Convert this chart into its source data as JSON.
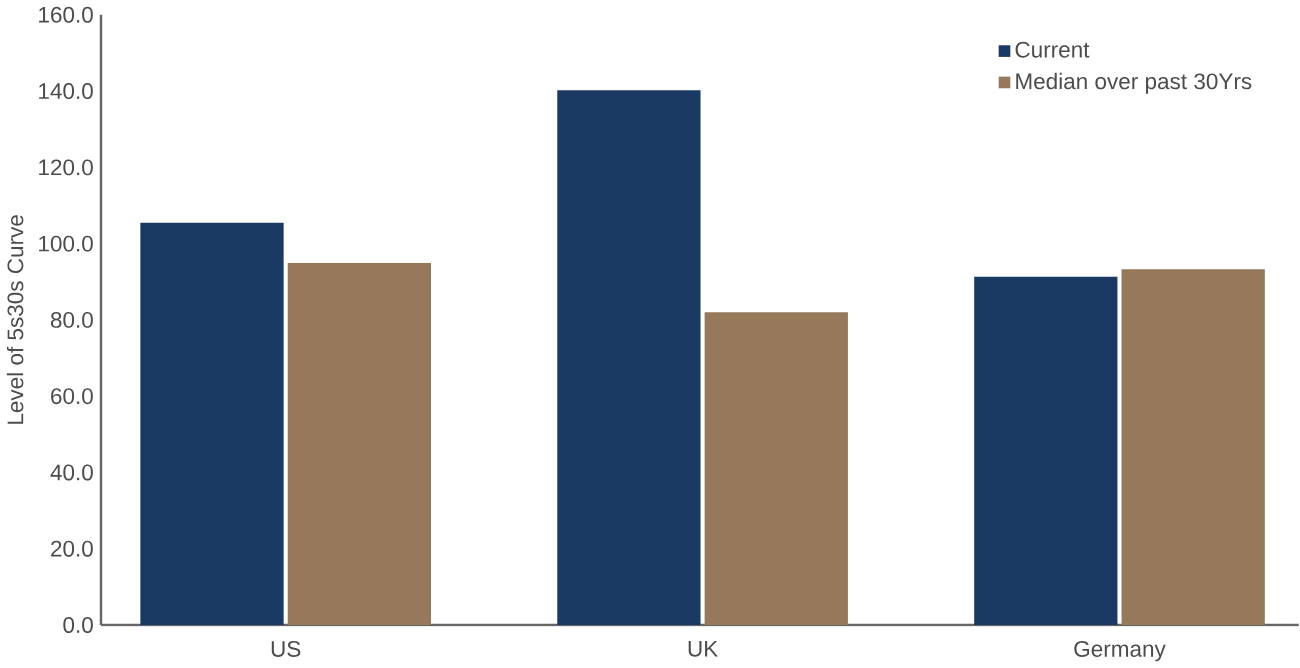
{
  "chart_data": {
    "type": "bar",
    "ylabel": "Level of 5s30s Curve",
    "categories": [
      "US",
      "UK",
      "Germany"
    ],
    "series": [
      {
        "name": "Current",
        "color": "#1b3a63",
        "values": [
          105.5,
          140.2,
          91.3
        ]
      },
      {
        "name": "Median over past 30Yrs",
        "color": "#95795a",
        "values": [
          94.9,
          82.0,
          93.3
        ]
      }
    ],
    "ylim": [
      0,
      160
    ],
    "yticks": [
      {
        "value": 0,
        "label": "0.0"
      },
      {
        "value": 20,
        "label": "20.0"
      },
      {
        "value": 40,
        "label": "40.0"
      },
      {
        "value": 60,
        "label": "60.0"
      },
      {
        "value": 80,
        "label": "80.0"
      },
      {
        "value": 100,
        "label": "100.0"
      },
      {
        "value": 120,
        "label": "120.0"
      },
      {
        "value": 140,
        "label": "140.0"
      },
      {
        "value": 160,
        "label": "160.0"
      }
    ],
    "legend": "top right"
  }
}
